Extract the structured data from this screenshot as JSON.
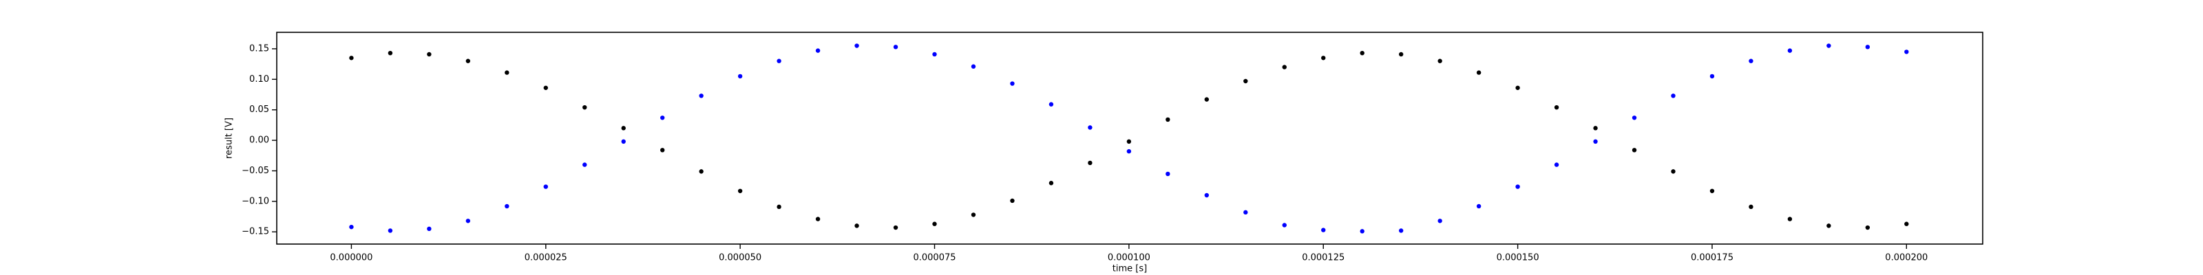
{
  "chart_data": {
    "type": "scatter",
    "xlabel": "time [s]",
    "ylabel": "result [V]",
    "x": [
      0,
      5e-06,
      1e-05,
      1.5e-05,
      2e-05,
      2.5e-05,
      3e-05,
      3.5e-05,
      4e-05,
      4.5e-05,
      5e-05,
      5.5e-05,
      6e-05,
      6.5e-05,
      7e-05,
      7.5e-05,
      8e-05,
      8.5e-05,
      9e-05,
      9.5e-05,
      0.0001,
      0.000105,
      0.00011,
      0.000115,
      0.00012,
      0.000125,
      0.00013,
      0.000135,
      0.00014,
      0.000145,
      0.00015,
      0.000155,
      0.00016,
      0.000165,
      0.00017,
      0.000175,
      0.00018,
      0.000185,
      0.00019,
      0.000195,
      0.0002
    ],
    "series": [
      {
        "color": "#000000",
        "values": [
          0.135,
          0.143,
          0.141,
          0.13,
          0.111,
          0.086,
          0.054,
          0.02,
          -0.016,
          -0.051,
          -0.083,
          -0.109,
          -0.129,
          -0.14,
          -0.143,
          -0.137,
          -0.122,
          -0.099,
          -0.07,
          -0.037,
          -0.002,
          0.034,
          0.067,
          0.097,
          0.12,
          0.135,
          0.143,
          0.141,
          0.13,
          0.111,
          0.086,
          0.054,
          0.02,
          -0.016,
          -0.051,
          -0.083,
          -0.109,
          -0.129,
          -0.14,
          -0.143,
          -0.137
        ]
      },
      {
        "color": "#0000ff",
        "values": [
          -0.142,
          -0.148,
          -0.145,
          -0.132,
          -0.108,
          -0.076,
          -0.04,
          -0.002,
          0.037,
          0.073,
          0.105,
          0.13,
          0.147,
          0.155,
          0.153,
          0.141,
          0.121,
          0.093,
          0.059,
          0.021,
          -0.018,
          -0.055,
          -0.09,
          -0.118,
          -0.139,
          -0.147,
          -0.149,
          -0.148,
          -0.132,
          -0.108,
          -0.076,
          -0.04,
          -0.002,
          0.037,
          0.073,
          0.105,
          0.13,
          0.147,
          0.155,
          0.153,
          0.145
        ]
      }
    ],
    "xlim": [
      -9.6e-06,
      0.0002098
    ],
    "ylim": [
      -0.17,
      0.177
    ],
    "xticks": [
      {
        "value": 0,
        "label": "0.000000"
      },
      {
        "value": 2.5e-05,
        "label": "0.000025"
      },
      {
        "value": 5e-05,
        "label": "0.000050"
      },
      {
        "value": 7.5e-05,
        "label": "0.000075"
      },
      {
        "value": 0.0001,
        "label": "0.000100"
      },
      {
        "value": 0.000125,
        "label": "0.000125"
      },
      {
        "value": 0.00015,
        "label": "0.000150"
      },
      {
        "value": 0.000175,
        "label": "0.000175"
      },
      {
        "value": 0.0002,
        "label": "0.000200"
      }
    ],
    "yticks": [
      {
        "value": -0.15,
        "label": "−0.15"
      },
      {
        "value": -0.1,
        "label": "−0.10"
      },
      {
        "value": -0.05,
        "label": "−0.05"
      },
      {
        "value": 0,
        "label": "0.00"
      },
      0.05,
      {
        "value": 0.1,
        "label": "0.10"
      },
      0.15
    ],
    "grid": false
  }
}
